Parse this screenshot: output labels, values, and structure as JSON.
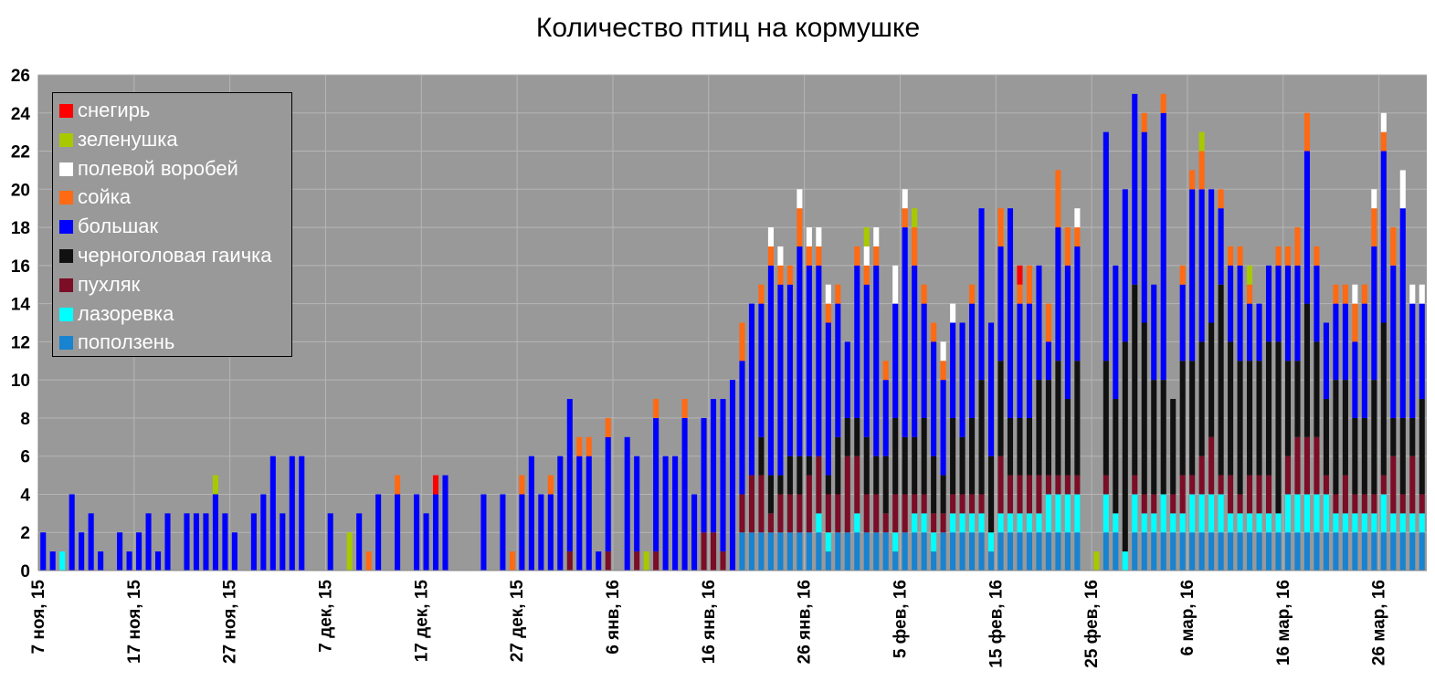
{
  "chart_data": {
    "type": "bar",
    "stacked": true,
    "title": "Количество птиц на кормушке",
    "xlabel": "",
    "ylabel": "",
    "ylim": [
      0,
      26
    ],
    "y_ticks": [
      0,
      2,
      4,
      6,
      8,
      10,
      12,
      14,
      16,
      18,
      20,
      22,
      24,
      26
    ],
    "grid": true,
    "legend_position": "top-left",
    "plot_background": "#999999",
    "x_start": "2015-11-07",
    "x_end": "2016-03-30",
    "x_tick_labels": [
      "7 ноя, 15",
      "17 ноя, 15",
      "27 ноя, 15",
      "7 дек, 15",
      "17 дек, 15",
      "27 дек, 15",
      "6 янв, 16",
      "16 янв, 16",
      "26 янв, 16",
      "5 фев, 16",
      "15 фев, 16",
      "25 фев, 16",
      "6 мар, 16",
      "16 мар, 16",
      "26 мар, 16"
    ],
    "series": [
      {
        "name": "снегирь",
        "color": "#ff0000"
      },
      {
        "name": "зеленушка",
        "color": "#a8c800"
      },
      {
        "name": "полевой воробей",
        "color": "#ffffff"
      },
      {
        "name": "сойка",
        "color": "#ff6a13"
      },
      {
        "name": "большак",
        "color": "#0000ff"
      },
      {
        "name": "черноголовая гаичка",
        "color": "#111111"
      },
      {
        "name": "пухляк",
        "color": "#7b0d27"
      },
      {
        "name": "лазоревка",
        "color": "#00ffff"
      },
      {
        "name": "поползень",
        "color": "#1883d0"
      }
    ],
    "stack_order_bottom_to_top": [
      "поползень",
      "лазоревка",
      "пухляк",
      "черноголовая гаичка",
      "большак",
      "сойка",
      "полевой воробей",
      "зеленушка",
      "снегирь"
    ],
    "records": [
      {
        "date": "2015-11-07",
        "большак": 2
      },
      {
        "date": "2015-11-08",
        "большак": 1
      },
      {
        "date": "2015-11-09",
        "лазоревка": 1
      },
      {
        "date": "2015-11-10",
        "большак": 4
      },
      {
        "date": "2015-11-11",
        "большак": 2
      },
      {
        "date": "2015-11-12",
        "большак": 3
      },
      {
        "date": "2015-11-13",
        "большак": 1
      },
      {
        "date": "2015-11-15",
        "большак": 2
      },
      {
        "date": "2015-11-16",
        "большак": 1
      },
      {
        "date": "2015-11-17",
        "большак": 2
      },
      {
        "date": "2015-11-18",
        "большак": 3
      },
      {
        "date": "2015-11-19",
        "большак": 1
      },
      {
        "date": "2015-11-20",
        "большак": 3
      },
      {
        "date": "2015-11-22",
        "большак": 3
      },
      {
        "date": "2015-11-23",
        "большак": 3
      },
      {
        "date": "2015-11-24",
        "большак": 3
      },
      {
        "date": "2015-11-25",
        "большак": 4,
        "зеленушка": 1
      },
      {
        "date": "2015-11-26",
        "большак": 3
      },
      {
        "date": "2015-11-27",
        "большак": 2
      },
      {
        "date": "2015-11-29",
        "большак": 3
      },
      {
        "date": "2015-11-30",
        "большак": 4
      },
      {
        "date": "2015-12-01",
        "большак": 6
      },
      {
        "date": "2015-12-02",
        "большак": 3
      },
      {
        "date": "2015-12-03",
        "большак": 6
      },
      {
        "date": "2015-12-04",
        "большак": 6
      },
      {
        "date": "2015-12-07",
        "большак": 3
      },
      {
        "date": "2015-12-09",
        "зеленушка": 2
      },
      {
        "date": "2015-12-10",
        "большак": 3
      },
      {
        "date": "2015-12-11",
        "сойка": 1
      },
      {
        "date": "2015-12-12",
        "большак": 4
      },
      {
        "date": "2015-12-14",
        "большак": 4,
        "сойка": 1
      },
      {
        "date": "2015-12-16",
        "большак": 4
      },
      {
        "date": "2015-12-17",
        "большак": 3
      },
      {
        "date": "2015-12-18",
        "большак": 4,
        "снегирь": 1
      },
      {
        "date": "2015-12-19",
        "большак": 5
      },
      {
        "date": "2015-12-23",
        "большак": 4
      },
      {
        "date": "2015-12-25",
        "большак": 4
      },
      {
        "date": "2015-12-26",
        "сойка": 1
      },
      {
        "date": "2015-12-27",
        "большак": 4,
        "сойка": 1
      },
      {
        "date": "2015-12-28",
        "большак": 6
      },
      {
        "date": "2015-12-29",
        "большак": 4
      },
      {
        "date": "2015-12-30",
        "большак": 4,
        "сойка": 1
      },
      {
        "date": "2015-12-31",
        "большак": 6
      },
      {
        "date": "2016-01-01",
        "пухляк": 1,
        "большак": 8
      },
      {
        "date": "2016-01-02",
        "большак": 6,
        "сойка": 1
      },
      {
        "date": "2016-01-03",
        "большак": 6,
        "сойка": 1
      },
      {
        "date": "2016-01-04",
        "большак": 1
      },
      {
        "date": "2016-01-05",
        "пухляк": 1,
        "большак": 6,
        "сойка": 1
      },
      {
        "date": "2016-01-07",
        "большак": 7
      },
      {
        "date": "2016-01-08",
        "пухляк": 1,
        "большак": 5
      },
      {
        "date": "2016-01-09",
        "зеленушка": 1
      },
      {
        "date": "2016-01-10",
        "пухляк": 1,
        "большак": 7,
        "сойка": 1
      },
      {
        "date": "2016-01-11",
        "большак": 6
      },
      {
        "date": "2016-01-12",
        "большак": 6
      },
      {
        "date": "2016-01-13",
        "большак": 8,
        "сойка": 1
      },
      {
        "date": "2016-01-14",
        "большак": 4
      },
      {
        "date": "2016-01-15",
        "пухляк": 2,
        "большак": 6
      },
      {
        "date": "2016-01-16",
        "пухляк": 2,
        "большак": 7
      },
      {
        "date": "2016-01-17",
        "пухляк": 1,
        "большак": 8
      },
      {
        "date": "2016-01-18",
        "большак": 10
      },
      {
        "date": "2016-01-19",
        "поползень": 2,
        "пухляк": 2,
        "большак": 7,
        "сойка": 2
      },
      {
        "date": "2016-01-20",
        "поползень": 2,
        "пухляк": 3,
        "большак": 9
      },
      {
        "date": "2016-01-21",
        "поползень": 2,
        "пухляк": 3,
        "черноголовая гаичка": 2,
        "большак": 7,
        "сойка": 1
      },
      {
        "date": "2016-01-22",
        "поползень": 2,
        "пухляк": 1,
        "черноголовая гаичка": 2,
        "большак": 11,
        "сойка": 1,
        "полевой воробей": 1
      },
      {
        "date": "2016-01-23",
        "поползень": 2,
        "пухляк": 2,
        "черноголовая гаичка": 1,
        "большак": 10,
        "сойка": 1,
        "полевой воробей": 1
      },
      {
        "date": "2016-01-24",
        "поползень": 2,
        "пухляк": 2,
        "черноголовая гаичка": 2,
        "большак": 9,
        "сойка": 1
      },
      {
        "date": "2016-01-25",
        "поползень": 2,
        "пухляк": 2,
        "черноголовая гаичка": 2,
        "большак": 11,
        "сойка": 2,
        "полевой воробей": 1
      },
      {
        "date": "2016-01-26",
        "поползень": 2,
        "пухляк": 3,
        "черноголовая гаичка": 1,
        "большак": 10,
        "сойка": 1,
        "полевой воробей": 1
      },
      {
        "date": "2016-01-27",
        "поползень": 2,
        "лазоревка": 1,
        "пухляк": 3,
        "большак": 10,
        "сойка": 1,
        "полевой воробей": 1
      },
      {
        "date": "2016-01-28",
        "поползень": 1,
        "лазоревка": 1,
        "пухляк": 2,
        "черноголовая гаичка": 1,
        "большак": 8,
        "сойка": 1,
        "полевой воробей": 1
      },
      {
        "date": "2016-01-29",
        "поползень": 2,
        "пухляк": 2,
        "черноголовая гаичка": 3,
        "большак": 7,
        "сойка": 1
      },
      {
        "date": "2016-01-30",
        "поползень": 2,
        "пухляк": 4,
        "черноголовая гаичка": 2,
        "большак": 4
      },
      {
        "date": "2016-01-31",
        "поползень": 2,
        "лазоревка": 1,
        "пухляк": 3,
        "черноголовая гаичка": 2,
        "большак": 8,
        "сойка": 1
      },
      {
        "date": "2016-02-01",
        "поползень": 2,
        "пухляк": 2,
        "черноголовая гаичка": 3,
        "большак": 8,
        "сойка": 1,
        "полевой воробей": 1,
        "зеленушка": 1
      },
      {
        "date": "2016-02-02",
        "поползень": 2,
        "пухляк": 2,
        "черноголовая гаичка": 2,
        "большак": 10,
        "сойка": 1,
        "полевой воробей": 1
      },
      {
        "date": "2016-02-03",
        "поползень": 2,
        "пухляк": 1,
        "черноголовая гаичка": 3,
        "большак": 4,
        "сойка": 1
      },
      {
        "date": "2016-02-04",
        "поползень": 1,
        "лазоревка": 1,
        "пухляк": 2,
        "черноголовая гаичка": 4,
        "большак": 6,
        "полевой воробей": 2
      },
      {
        "date": "2016-02-05",
        "поползень": 2,
        "пухляк": 2,
        "черноголовая гаичка": 3,
        "большак": 11,
        "сойка": 1,
        "полевой воробей": 1
      },
      {
        "date": "2016-02-06",
        "поползень": 2,
        "лазоревка": 1,
        "пухляк": 1,
        "черноголовая гаичка": 3,
        "большак": 9,
        "сойка": 2,
        "зеленушка": 1
      },
      {
        "date": "2016-02-07",
        "поползень": 2,
        "лазоревка": 1,
        "пухляк": 1,
        "черноголовая гаичка": 4,
        "большак": 6,
        "сойка": 1
      },
      {
        "date": "2016-02-08",
        "поползень": 1,
        "лазоревка": 1,
        "пухляк": 1,
        "черноголовая гаичка": 3,
        "большак": 6,
        "сойка": 1
      },
      {
        "date": "2016-02-09",
        "поповзень": 0,
        "поползень": 2,
        "пухляк": 1,
        "черноголовая гаичка": 2,
        "большак": 5,
        "сойка": 1,
        "полевой воробей": 1
      },
      {
        "date": "2016-02-10",
        "поползень": 2,
        "лазоревка": 1,
        "пухляк": 1,
        "черноголовая гаичка": 4,
        "большак": 5,
        "полевой воробей": 1
      },
      {
        "date": "2016-02-11",
        "поползень": 2,
        "лазоревка": 1,
        "пухляк": 1,
        "черноголовая гаичка": 3,
        "большак": 6
      },
      {
        "date": "2016-02-12",
        "поползень": 2,
        "лазоревка": 1,
        "пухляк": 1,
        "черноголовая гаичка": 4,
        "большак": 6,
        "сойка": 1
      },
      {
        "date": "2016-02-13",
        "поползень": 2,
        "лазоревка": 1,
        "пухляк": 1,
        "черноголовая гаичка": 6,
        "большак": 9
      },
      {
        "date": "2016-02-14",
        "поползень": 1,
        "лазоревка": 1,
        "черноголовая гаичка": 4,
        "большак": 7
      },
      {
        "date": "2016-02-15",
        "поползень": 2,
        "лазоревка": 1,
        "пухляк": 3,
        "черноголовая гаичка": 5,
        "большак": 6,
        "сойка": 2
      },
      {
        "date": "2016-02-16",
        "поползень": 2,
        "лазоревка": 1,
        "пухляк": 2,
        "черноголовая гаичка": 3,
        "большак": 11
      },
      {
        "date": "2016-02-17",
        "поползень": 2,
        "лазоревка": 1,
        "пухляк": 2,
        "черноголовая гаичка": 3,
        "большак": 6,
        "сойка": 1,
        "снегирь": 1
      },
      {
        "date": "2016-02-18",
        "поползень": 2,
        "лазоревка": 1,
        "пухляк": 2,
        "черноголовая гаичка": 3,
        "большак": 6,
        "сойка": 2
      },
      {
        "date": "2016-02-19",
        "поползень": 2,
        "лазоревка": 1,
        "пухляк": 2,
        "черноголовая гаичка": 5,
        "большак": 6
      },
      {
        "date": "2016-02-20",
        "поползень": 2,
        "лазоревка": 2,
        "пухляк": 1,
        "черноголовая гаичка": 5,
        "большак": 2,
        "сойка": 2
      },
      {
        "date": "2016-02-21",
        "поползень": 2,
        "лазоревка": 2,
        "пухляк": 1,
        "черноголовая гаичка": 6,
        "большак": 7,
        "сойка": 3
      },
      {
        "date": "2016-02-22",
        "поползень": 2,
        "лазоревка": 2,
        "пухляк": 1,
        "черноголовая гаичка": 4,
        "большак": 7,
        "сойка": 2
      },
      {
        "date": "2016-02-23",
        "поползень": 2,
        "лазоревка": 2,
        "пухляк": 1,
        "черноголовая гаичка": 6,
        "большак": 6,
        "сойка": 1,
        "полевой воробей": 1
      },
      {
        "date": "2016-02-25",
        "зеленушка": 1
      },
      {
        "date": "2016-02-26",
        "поползень": 2,
        "лазоревка": 2,
        "пухляк": 1,
        "черноголовая гаичка": 6,
        "большак": 12
      },
      {
        "date": "2016-02-27",
        "поползень": 2,
        "лазоревка": 1,
        "черноголовая гаичка": 6,
        "большак": 7
      },
      {
        "date": "2016-02-28",
        "лазоревка": 1,
        "черноголовая гаичка": 11,
        "большак": 8
      },
      {
        "date": "2016-02-29",
        "поползень": 2,
        "лазоревка": 2,
        "пухляк": 1,
        "черноголовая гаичка": 10,
        "большак": 10
      },
      {
        "date": "2016-03-01",
        "поползень": 2,
        "лазоревка": 1,
        "пухляк": 1,
        "черноголовая гаичка": 9,
        "большак": 10,
        "сойка": 1
      },
      {
        "date": "2016-03-02",
        "поползень": 2,
        "лазоревка": 1,
        "пухляк": 1,
        "черноголовая гаичка": 6,
        "большак": 5
      },
      {
        "date": "2016-03-03",
        "поползень": 2,
        "лазоревка": 2,
        "черноголовая гаичка": 6,
        "большак": 14,
        "сойка": 1
      },
      {
        "date": "2016-03-04",
        "поползень": 2,
        "лазоревка": 1,
        "пухляк": 1,
        "черноголовая гаичка": 5,
        "большак": 0
      },
      {
        "date": "2016-03-05",
        "поползень": 2,
        "лазоревка": 1,
        "пухляк": 2,
        "черноголовая гаичка": 6,
        "большак": 4,
        "сойка": 1
      },
      {
        "date": "2016-03-06",
        "поползень": 2,
        "лазоревка": 2,
        "пухляк": 1,
        "черноголовая гаичка": 6,
        "большак": 9,
        "сойка": 1
      },
      {
        "date": "2016-03-07",
        "поползень": 2,
        "лазоревка": 2,
        "пухляк": 2,
        "черноголовая гаичка": 6,
        "большак": 8,
        "сойка": 2,
        "зеленушка": 1
      },
      {
        "date": "2016-03-08",
        "поползень": 2,
        "лазоревка": 2,
        "пухляк": 3,
        "черноголовая гаичка": 6,
        "большак": 7
      },
      {
        "date": "2016-03-09",
        "поползень": 2,
        "лазоревка": 2,
        "пухляк": 1,
        "черноголовая гаичка": 10,
        "большак": 4,
        "сойка": 1
      },
      {
        "date": "2016-03-10",
        "поползень": 2,
        "лазоревка": 1,
        "пухляк": 2,
        "черноголовая гаичка": 7,
        "большак": 4,
        "сойка": 1
      },
      {
        "date": "2016-03-11",
        "поползень": 2,
        "лазоревка": 1,
        "пухляк": 1,
        "черноголовая гаичка": 7,
        "большак": 5,
        "сойка": 1
      },
      {
        "date": "2016-03-12",
        "поползень": 2,
        "лазоревка": 1,
        "пухляк": 2,
        "черноголовая гаичка": 6,
        "большак": 3,
        "сойка": 1,
        "зеленушка": 1
      },
      {
        "date": "2016-03-13",
        "поползень": 2,
        "лазоревка": 1,
        "пухляк": 2,
        "черноголовая гаичка": 6,
        "большак": 3
      },
      {
        "date": "2016-03-14",
        "поползень": 2,
        "лазоревка": 1,
        "пухляк": 2,
        "черноголовая гаичка": 7,
        "большак": 4
      },
      {
        "date": "2016-03-15",
        "поползень": 2,
        "лазоревка": 1,
        "черноголовая гаичка": 9,
        "большак": 4,
        "сойка": 1
      },
      {
        "date": "2016-03-16",
        "поползень": 2,
        "лазоревка": 2,
        "пухляк": 2,
        "черноголовая гаичка": 5,
        "большак": 5,
        "сойка": 1
      },
      {
        "date": "2016-03-17",
        "поползень": 2,
        "лазоревка": 2,
        "пухляк": 3,
        "черноголовая гаичка": 4,
        "большак": 5,
        "сойка": 2
      },
      {
        "date": "2016-03-18",
        "поползень": 2,
        "лазоревка": 2,
        "пухляк": 3,
        "черноголовая гаичка": 7,
        "большак": 8,
        "сойка": 2
      },
      {
        "date": "2016-03-19",
        "поползень": 2,
        "лазоревка": 2,
        "пухляк": 3,
        "черноголовая гаичка": 5,
        "большак": 4,
        "сойка": 1
      },
      {
        "date": "2016-03-20",
        "поползень": 2,
        "лазоревка": 2,
        "пухляк": 1,
        "черноголовая гаичка": 4,
        "большак": 4
      },
      {
        "date": "2016-03-21",
        "поповзень": 0,
        "поползень": 2,
        "лазоревка": 1,
        "пухляк": 1,
        "черноголовая гаичка": 6,
        "большак": 4,
        "сойка": 1
      },
      {
        "date": "2016-03-22",
        "поползень": 2,
        "лазоревка": 1,
        "пухляк": 2,
        "черноголовая гаичка": 5,
        "большак": 4,
        "сойка": 1
      },
      {
        "date": "2016-03-23",
        "поползень": 2,
        "лазоревка": 1,
        "пухляк": 1,
        "черноголовая гаичка": 4,
        "большак": 4,
        "сойка": 2,
        "полевой воробей": 1
      },
      {
        "date": "2016-03-24",
        "поползень": 2,
        "лазоревка": 1,
        "пухляк": 1,
        "черноголовая гаичка": 4,
        "большак": 6,
        "сойка": 1
      },
      {
        "date": "2016-03-25",
        "поползень": 2,
        "лазоревка": 1,
        "пухляк": 1,
        "черноголовая гаичка": 6,
        "большак": 7,
        "сойка": 2,
        "полевой воробей": 1
      },
      {
        "date": "2016-03-26",
        "поползень": 2,
        "лазоревка": 2,
        "пухляк": 1,
        "черноголовая гаичка": 8,
        "большак": 9,
        "сойка": 1,
        "полевой воробей": 1
      },
      {
        "date": "2016-03-27",
        "поползень": 2,
        "лазоревка": 1,
        "пухляк": 3,
        "черноголовая гаичка": 2,
        "большак": 8,
        "сойка": 2
      },
      {
        "date": "2016-03-28",
        "поползень": 2,
        "лазоревка": 1,
        "пухляк": 1,
        "черноголовая гаичка": 4,
        "большак": 11,
        "полевой воробей": 2
      },
      {
        "date": "2016-03-29",
        "поползень": 2,
        "лазоревка": 1,
        "пухляк": 3,
        "черноголовая гаичка": 2,
        "большак": 6,
        "полевой воробей": 1
      },
      {
        "date": "2016-03-30",
        "поползень": 2,
        "лазоревка": 1,
        "пухляк": 1,
        "черноголовая гаичка": 5,
        "большак": 5,
        "полевой воробей": 1
      }
    ]
  }
}
